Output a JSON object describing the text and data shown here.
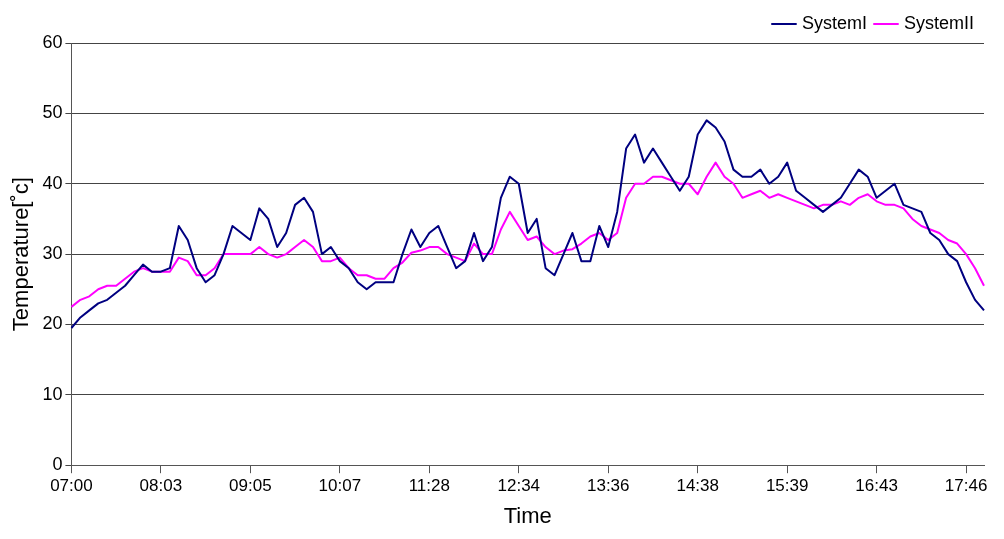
{
  "chart_data": {
    "type": "line",
    "xlabel": "Time",
    "ylabel": "Temperature[˚c]",
    "categories": [
      "07:00",
      null,
      null,
      null,
      null,
      null,
      null,
      null,
      null,
      null,
      "08:03",
      null,
      null,
      null,
      null,
      null,
      null,
      null,
      null,
      null,
      "09:05",
      null,
      null,
      null,
      null,
      null,
      null,
      null,
      null,
      null,
      "10:07",
      null,
      null,
      null,
      null,
      null,
      null,
      null,
      null,
      null,
      "11:28",
      null,
      null,
      null,
      null,
      null,
      null,
      null,
      null,
      null,
      "12:34",
      null,
      null,
      null,
      null,
      null,
      null,
      null,
      null,
      null,
      "13:36",
      null,
      null,
      null,
      null,
      null,
      null,
      null,
      null,
      null,
      "14:38",
      null,
      null,
      null,
      null,
      null,
      null,
      null,
      null,
      null,
      "15:39",
      null,
      null,
      null,
      null,
      null,
      null,
      null,
      null,
      null,
      "16:43",
      null,
      null,
      null,
      null,
      null,
      null,
      null,
      null,
      null,
      "17:46",
      null,
      null
    ],
    "series": [
      {
        "name": "SystemI",
        "color": "#000080",
        "values": [
          19.5,
          21,
          22,
          23,
          23.5,
          24.5,
          25.5,
          27,
          28.5,
          27.5,
          27.5,
          28,
          34,
          32,
          28,
          26,
          27,
          30,
          34,
          33,
          32,
          36.5,
          35,
          31,
          33,
          37,
          38,
          36,
          30,
          31,
          29,
          28,
          26,
          25,
          26,
          26,
          26,
          30,
          33.5,
          31,
          33,
          34,
          31,
          28,
          29,
          33,
          29,
          31,
          38,
          41,
          40,
          33,
          35,
          28,
          27,
          30,
          33,
          29,
          29,
          34,
          31,
          36,
          45,
          47,
          43,
          45,
          43,
          41,
          39,
          41,
          47,
          49,
          48,
          46,
          42,
          41,
          41,
          42,
          40,
          41,
          43,
          39,
          38,
          37,
          36,
          37,
          38,
          40,
          42,
          41,
          38,
          39,
          40,
          37,
          36.5,
          36,
          33,
          32,
          30,
          29,
          26,
          23.5,
          22
        ]
      },
      {
        "name": "SystemII",
        "color": "#ff00ff",
        "values": [
          22.5,
          23.5,
          24,
          25,
          25.5,
          25.5,
          26.5,
          27.5,
          28,
          27.5,
          27.5,
          27.5,
          29.5,
          29,
          27,
          27,
          28,
          30,
          30,
          30,
          30,
          31,
          30,
          29.5,
          30,
          31,
          32,
          31,
          29,
          29,
          29.5,
          28,
          27,
          27,
          26.5,
          26.5,
          28,
          28.8,
          30.2,
          30.5,
          31,
          31,
          30,
          29.5,
          29,
          31.5,
          30,
          30,
          33.5,
          36,
          34,
          32,
          32.5,
          31,
          30,
          30.5,
          30.7,
          31.5,
          32.5,
          33,
          32,
          33,
          38,
          40,
          40,
          41,
          41,
          40.5,
          40,
          40,
          38.5,
          41,
          43,
          41,
          40,
          38,
          38.5,
          39,
          38,
          38.5,
          38,
          37.5,
          37,
          36.5,
          37,
          37,
          37.5,
          37,
          38,
          38.5,
          37.5,
          37,
          37,
          36.5,
          35,
          34,
          33.5,
          33,
          32,
          31.5,
          30,
          28,
          25.5
        ]
      }
    ],
    "ylim": [
      0,
      60
    ],
    "yticks": [
      0,
      10,
      20,
      30,
      40,
      50,
      60
    ],
    "grid": "y",
    "legend": "top right",
    "marker": "none",
    "line_style": "solid"
  }
}
